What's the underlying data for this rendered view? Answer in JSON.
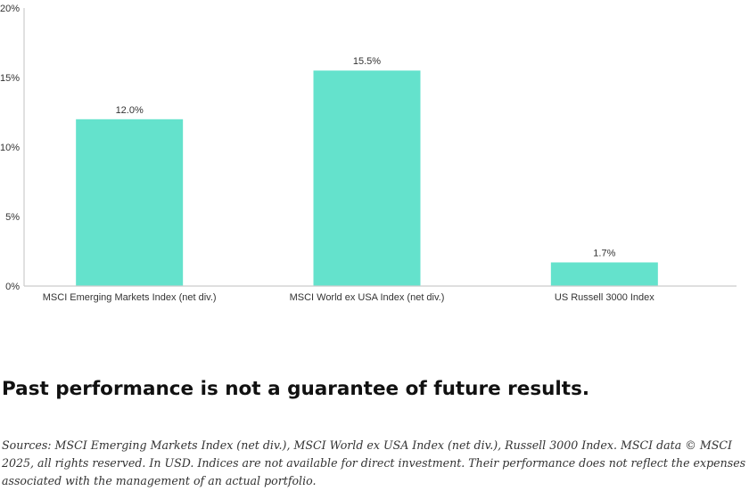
{
  "chart_data": {
    "type": "bar",
    "categories": [
      "MSCI Emerging Markets Index (net div.)",
      "MSCI World ex USA Index (net div.)",
      "US Russell 3000 Index"
    ],
    "values": [
      12.0,
      15.5,
      1.7
    ],
    "value_labels": [
      "12.0%",
      "15.5%",
      "1.7%"
    ],
    "yticks": [
      "0%",
      "5%",
      "10%",
      "15%",
      "20%"
    ],
    "ylim": [
      0,
      20
    ],
    "title": "",
    "xlabel": "",
    "ylabel": "",
    "grid": false,
    "bar_color": "#64e2cc",
    "axis_color": "#cccccc"
  },
  "headline": "Past performance is not a guarantee of future results.",
  "sources": "Sources: MSCI Emerging Markets Index (net div.), MSCI World ex USA Index (net div.), Russell 3000 Index. MSCI data © MSCI 2025, all rights reserved. In USD. Indices are not available for direct investment. Their performance does not reflect the expenses associated with the management of an actual portfolio."
}
